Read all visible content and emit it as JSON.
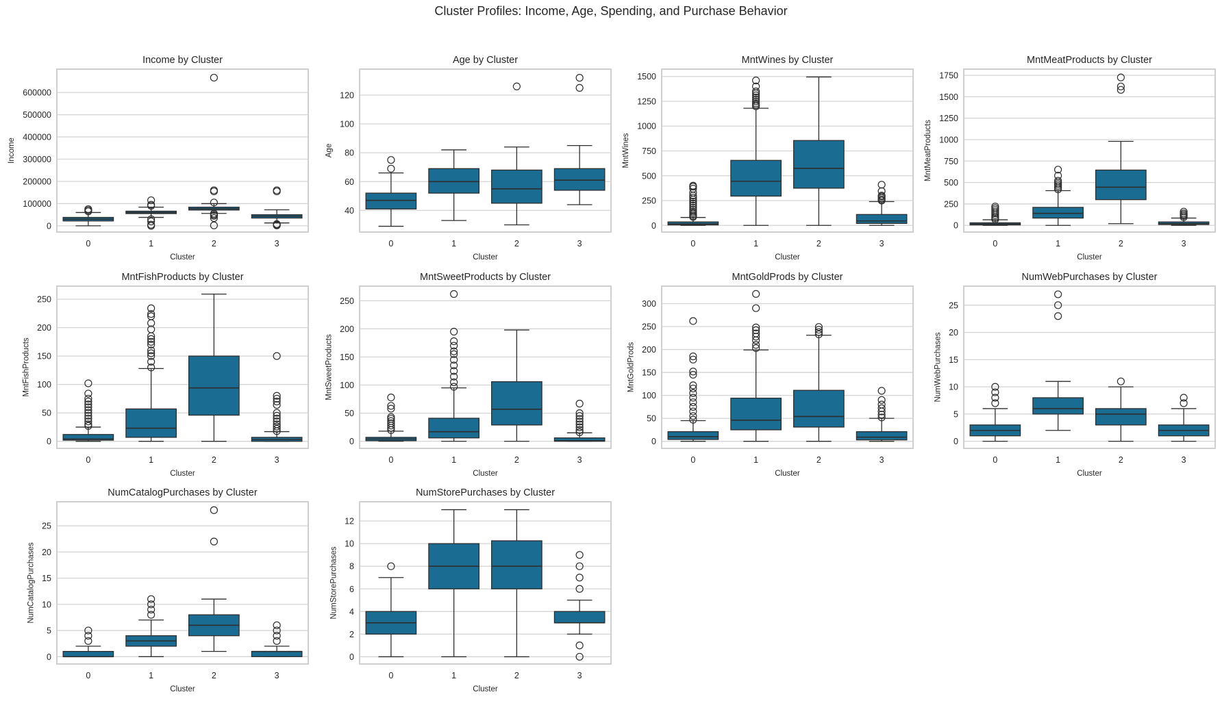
{
  "title": "Cluster Profiles: Income, Age, Spending, and Purchase Behavior",
  "colors": {
    "box": "#1b6c92",
    "edge": "#2e2e2e",
    "grid": "#d4d4d4",
    "frame": "#cfcfcf"
  },
  "chart_data": [
    {
      "type": "box",
      "title": "Income by Cluster",
      "xlabel": "Cluster",
      "ylabel": "Income",
      "categories": [
        "0",
        "1",
        "2",
        "3"
      ],
      "ylim": [
        -28000,
        705000
      ],
      "yticks": [
        0,
        100000,
        200000,
        300000,
        400000,
        500000,
        600000
      ],
      "grid": true,
      "boxes": [
        {
          "whislo": 0,
          "q1": 22000,
          "med": 30000,
          "q3": 38000,
          "whishi": 60000,
          "fliers": [
            65000,
            70000,
            75000
          ]
        },
        {
          "whislo": 38000,
          "q1": 55000,
          "med": 60000,
          "q3": 66000,
          "whishi": 84000,
          "fliers": [
            0,
            5000,
            20000,
            30000,
            90000,
            95000,
            115000
          ]
        },
        {
          "whislo": 56000,
          "q1": 71000,
          "med": 77000,
          "q3": 84000,
          "whishi": 100000,
          "fliers": [
            2000,
            35000,
            45000,
            50000,
            55000,
            105000,
            155000,
            160000,
            666666
          ]
        },
        {
          "whislo": 13000,
          "q1": 35000,
          "med": 43000,
          "q3": 50000,
          "whishi": 72000,
          "fliers": [
            2000,
            5000,
            8000,
            155000,
            160000
          ]
        }
      ]
    },
    {
      "type": "box",
      "title": "Age by Cluster",
      "xlabel": "Cluster",
      "ylabel": "Age",
      "categories": [
        "0",
        "1",
        "2",
        "3"
      ],
      "ylim": [
        25,
        138
      ],
      "yticks": [
        40,
        60,
        80,
        100,
        120
      ],
      "grid": true,
      "boxes": [
        {
          "whislo": 29,
          "q1": 41,
          "med": 47,
          "q3": 52,
          "whishi": 66,
          "fliers": [
            69,
            75
          ]
        },
        {
          "whislo": 33,
          "q1": 52,
          "med": 60,
          "q3": 69,
          "whishi": 82,
          "fliers": []
        },
        {
          "whislo": 30,
          "q1": 45,
          "med": 55,
          "q3": 68,
          "whishi": 84,
          "fliers": [
            126
          ]
        },
        {
          "whislo": 44,
          "q1": 54,
          "med": 61,
          "q3": 69,
          "whishi": 85,
          "fliers": [
            125,
            132
          ]
        }
      ]
    },
    {
      "type": "box",
      "title": "MntWines by Cluster",
      "xlabel": "Cluster",
      "ylabel": "MntWines",
      "categories": [
        "0",
        "1",
        "2",
        "3"
      ],
      "ylim": [
        -67,
        1574
      ],
      "yticks": [
        0,
        250,
        500,
        750,
        1000,
        1250,
        1500
      ],
      "grid": true,
      "boxes": [
        {
          "whislo": 0,
          "q1": 5,
          "med": 15,
          "q3": 35,
          "whishi": 80,
          "fliers": [
            85,
            95,
            110,
            125,
            140,
            160,
            180,
            200,
            220,
            240,
            260,
            280,
            300,
            330,
            370,
            390,
            400
          ]
        },
        {
          "whislo": 0,
          "q1": 295,
          "med": 445,
          "q3": 655,
          "whishi": 1180,
          "fliers": [
            1200,
            1215,
            1230,
            1250,
            1270,
            1290,
            1310,
            1330,
            1350,
            1400,
            1460
          ]
        },
        {
          "whislo": 0,
          "q1": 375,
          "med": 575,
          "q3": 855,
          "whishi": 1495,
          "fliers": []
        },
        {
          "whislo": 0,
          "q1": 20,
          "med": 45,
          "q3": 110,
          "whishi": 240,
          "fliers": [
            250,
            260,
            275,
            290,
            300,
            345,
            410
          ]
        }
      ]
    },
    {
      "type": "box",
      "title": "MntMeatProducts by Cluster",
      "xlabel": "Cluster",
      "ylabel": "MntMeatProducts",
      "categories": [
        "0",
        "1",
        "2",
        "3"
      ],
      "ylim": [
        -78,
        1822
      ],
      "yticks": [
        0,
        250,
        500,
        750,
        1000,
        1250,
        1500,
        1750
      ],
      "grid": true,
      "boxes": [
        {
          "whislo": 0,
          "q1": 5,
          "med": 15,
          "q3": 30,
          "whishi": 65,
          "fliers": [
            70,
            85,
            100,
            120,
            140,
            160,
            180,
            200,
            220
          ]
        },
        {
          "whislo": 0,
          "q1": 85,
          "med": 140,
          "q3": 210,
          "whishi": 405,
          "fliers": [
            420,
            440,
            460,
            480,
            500,
            520,
            580,
            650
          ]
        },
        {
          "whislo": 20,
          "q1": 300,
          "med": 445,
          "q3": 645,
          "whishi": 980,
          "fliers": [
            1580,
            1620,
            1725
          ]
        },
        {
          "whislo": 0,
          "q1": 10,
          "med": 20,
          "q3": 40,
          "whishi": 85,
          "fliers": [
            95,
            110,
            125,
            140,
            160
          ]
        }
      ]
    },
    {
      "type": "box",
      "title": "MntFishProducts by Cluster",
      "xlabel": "Cluster",
      "ylabel": "MntFishProducts",
      "categories": [
        "0",
        "1",
        "2",
        "3"
      ],
      "ylim": [
        -12.4,
        273
      ],
      "yticks": [
        0,
        50,
        100,
        150,
        200,
        250
      ],
      "grid": true,
      "boxes": [
        {
          "whislo": 0,
          "q1": 2,
          "med": 4,
          "q3": 12,
          "whishi": 25,
          "fliers": [
            27,
            30,
            35,
            40,
            45,
            50,
            55,
            60,
            65,
            70,
            75,
            84,
            102
          ]
        },
        {
          "whislo": 0,
          "q1": 7,
          "med": 23,
          "q3": 57,
          "whishi": 128,
          "fliers": [
            130,
            140,
            150,
            155,
            160,
            170,
            175,
            180,
            185,
            197,
            208,
            220,
            224,
            234
          ]
        },
        {
          "whislo": 0,
          "q1": 46,
          "med": 94,
          "q3": 150,
          "whishi": 259,
          "fliers": []
        },
        {
          "whislo": 0,
          "q1": 0,
          "med": 3,
          "q3": 7,
          "whishi": 17,
          "fliers": [
            18,
            22,
            26,
            30,
            35,
            40,
            45,
            50,
            64,
            70,
            75,
            80,
            150
          ]
        }
      ]
    },
    {
      "type": "box",
      "title": "MntSweetProducts by Cluster",
      "xlabel": "Cluster",
      "ylabel": "MntSweetProducts",
      "categories": [
        "0",
        "1",
        "2",
        "3"
      ],
      "ylim": [
        -12.6,
        276
      ],
      "yticks": [
        0,
        50,
        100,
        150,
        200,
        250
      ],
      "grid": true,
      "boxes": [
        {
          "whislo": 0,
          "q1": 1,
          "med": 4,
          "q3": 7,
          "whishi": 18,
          "fliers": [
            20,
            24,
            28,
            32,
            36,
            40,
            43,
            58,
            63,
            78
          ]
        },
        {
          "whislo": 0,
          "q1": 6,
          "med": 17,
          "q3": 41,
          "whishi": 95,
          "fliers": [
            97,
            105,
            115,
            125,
            135,
            145,
            155,
            160,
            170,
            178,
            195,
            262
          ]
        },
        {
          "whislo": 0,
          "q1": 29,
          "med": 57,
          "q3": 106,
          "whishi": 198,
          "fliers": []
        },
        {
          "whislo": 0,
          "q1": 0,
          "med": 1,
          "q3": 6,
          "whishi": 15,
          "fliers": [
            16,
            20,
            25,
            30,
            35,
            40,
            45,
            50,
            67
          ]
        }
      ]
    },
    {
      "type": "box",
      "title": "MntGoldProds by Cluster",
      "xlabel": "Cluster",
      "ylabel": "MntGoldProds",
      "categories": [
        "0",
        "1",
        "2",
        "3"
      ],
      "ylim": [
        -15.4,
        338
      ],
      "yticks": [
        0,
        50,
        100,
        150,
        200,
        250,
        300
      ],
      "grid": true,
      "boxes": [
        {
          "whislo": 0,
          "q1": 4,
          "med": 10,
          "q3": 21,
          "whishi": 45,
          "fliers": [
            47,
            55,
            65,
            75,
            85,
            95,
            105,
            115,
            122,
            145,
            152,
            178,
            185,
            262
          ]
        },
        {
          "whislo": 0,
          "q1": 25,
          "med": 46,
          "q3": 94,
          "whishi": 199,
          "fliers": [
            203,
            210,
            220,
            228,
            235,
            242,
            248,
            290,
            321
          ]
        },
        {
          "whislo": 0,
          "q1": 31,
          "med": 54,
          "q3": 111,
          "whishi": 231,
          "fliers": [
            233,
            238,
            243,
            249
          ]
        },
        {
          "whislo": 0,
          "q1": 3,
          "med": 9,
          "q3": 21,
          "whishi": 50,
          "fliers": [
            52,
            58,
            65,
            72,
            80,
            90,
            110
          ]
        }
      ]
    },
    {
      "type": "box",
      "title": "NumWebPurchases by Cluster",
      "xlabel": "Cluster",
      "ylabel": "NumWebPurchases",
      "categories": [
        "0",
        "1",
        "2",
        "3"
      ],
      "ylim": [
        -1.3,
        28.5
      ],
      "yticks": [
        0,
        5,
        10,
        15,
        20,
        25
      ],
      "grid": true,
      "boxes": [
        {
          "whislo": 0,
          "q1": 1,
          "med": 2,
          "q3": 3,
          "whishi": 6,
          "fliers": [
            7,
            8,
            9,
            10
          ]
        },
        {
          "whislo": 2,
          "q1": 5,
          "med": 6,
          "q3": 8,
          "whishi": 11,
          "fliers": [
            23,
            25,
            27
          ]
        },
        {
          "whislo": 0,
          "q1": 3,
          "med": 5,
          "q3": 6,
          "whishi": 10,
          "fliers": [
            11
          ]
        },
        {
          "whislo": 0,
          "q1": 1,
          "med": 2,
          "q3": 3,
          "whishi": 6,
          "fliers": [
            7,
            8
          ]
        }
      ]
    },
    {
      "type": "box",
      "title": "NumCatalogPurchases by Cluster",
      "xlabel": "Cluster",
      "ylabel": "NumCatalogPurchases",
      "categories": [
        "0",
        "1",
        "2",
        "3"
      ],
      "ylim": [
        -1.4,
        29.6
      ],
      "yticks": [
        0,
        5,
        10,
        15,
        20,
        25
      ],
      "grid": true,
      "boxes": [
        {
          "whislo": 0,
          "q1": 0,
          "med": 0,
          "q3": 1,
          "whishi": 2,
          "fliers": [
            3,
            4,
            5
          ]
        },
        {
          "whislo": 0,
          "q1": 2,
          "med": 3,
          "q3": 4,
          "whishi": 7,
          "fliers": [
            8,
            9,
            10,
            11
          ]
        },
        {
          "whislo": 1,
          "q1": 4,
          "med": 6,
          "q3": 8,
          "whishi": 11,
          "fliers": [
            22,
            28
          ]
        },
        {
          "whislo": 0,
          "q1": 0,
          "med": 1,
          "q3": 1,
          "whishi": 2,
          "fliers": [
            3,
            4,
            5,
            6
          ]
        }
      ]
    },
    {
      "type": "box",
      "title": "NumStorePurchases by Cluster",
      "xlabel": "Cluster",
      "ylabel": "NumStorePurchases",
      "categories": [
        "0",
        "1",
        "2",
        "3"
      ],
      "ylim": [
        -0.64,
        13.7
      ],
      "yticks": [
        0,
        2,
        4,
        6,
        8,
        10,
        12
      ],
      "grid": true,
      "boxes": [
        {
          "whislo": 0,
          "q1": 2,
          "med": 3,
          "q3": 4,
          "whishi": 7,
          "fliers": [
            8
          ]
        },
        {
          "whislo": 0,
          "q1": 6,
          "med": 8,
          "q3": 10,
          "whishi": 13,
          "fliers": []
        },
        {
          "whislo": 0,
          "q1": 6,
          "med": 8,
          "q3": 10.25,
          "whishi": 13,
          "fliers": []
        },
        {
          "whislo": 2,
          "q1": 3,
          "med": 3,
          "q3": 4,
          "whishi": 5,
          "fliers": [
            0,
            1,
            6,
            7,
            8,
            9
          ]
        }
      ]
    }
  ]
}
